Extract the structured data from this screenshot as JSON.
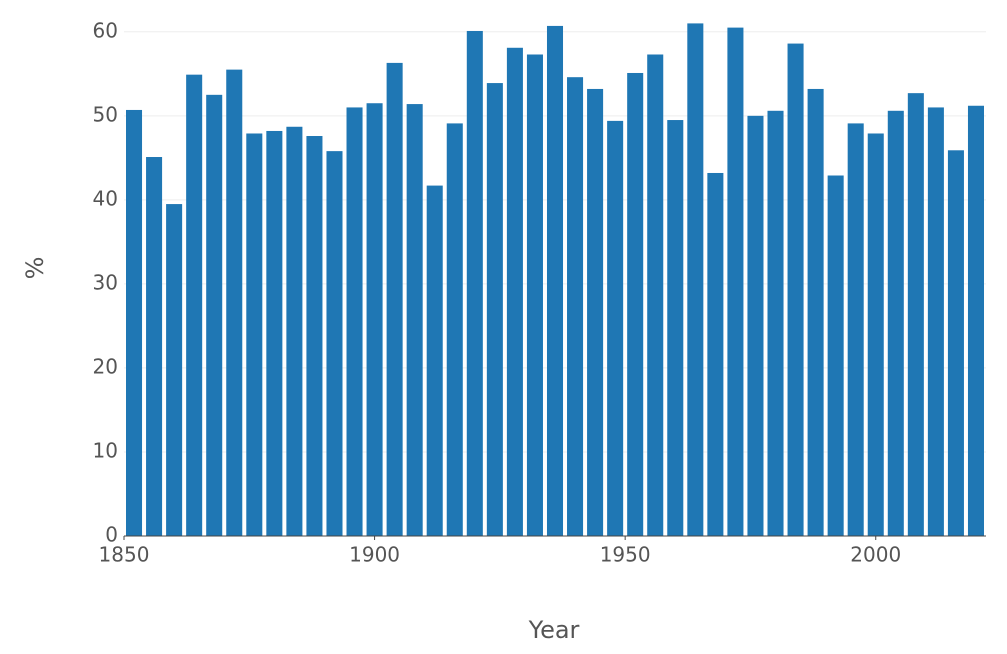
{
  "chart_data": {
    "type": "bar",
    "x_label": "Year",
    "y_label": "%",
    "x": [
      1852,
      1856,
      1860,
      1864,
      1868,
      1872,
      1876,
      1880,
      1884,
      1888,
      1892,
      1896,
      1900,
      1904,
      1908,
      1912,
      1916,
      1920,
      1924,
      1928,
      1932,
      1936,
      1940,
      1944,
      1948,
      1952,
      1956,
      1960,
      1964,
      1968,
      1972,
      1976,
      1980,
      1984,
      1988,
      1992,
      1996,
      2000,
      2004,
      2008,
      2012,
      2016,
      2020
    ],
    "values": [
      50.7,
      45.1,
      39.5,
      54.9,
      52.5,
      55.5,
      47.9,
      48.2,
      48.7,
      47.6,
      45.8,
      51.0,
      51.5,
      56.3,
      51.4,
      41.7,
      49.1,
      60.1,
      53.9,
      58.1,
      57.3,
      60.7,
      54.6,
      53.2,
      49.4,
      55.1,
      57.3,
      49.5,
      61.0,
      43.2,
      60.5,
      50.0,
      50.6,
      58.6,
      53.2,
      42.9,
      49.1,
      47.9,
      50.6,
      52.7,
      51.0,
      45.9,
      51.2
    ],
    "color": "#1f77b4",
    "xlim": [
      1850,
      2022
    ],
    "xticks": [
      1850,
      1900,
      1950,
      2000
    ],
    "ylim": [
      0,
      62
    ],
    "yticks": [
      0,
      10,
      20,
      30,
      40,
      50,
      60
    ],
    "grid": true
  }
}
